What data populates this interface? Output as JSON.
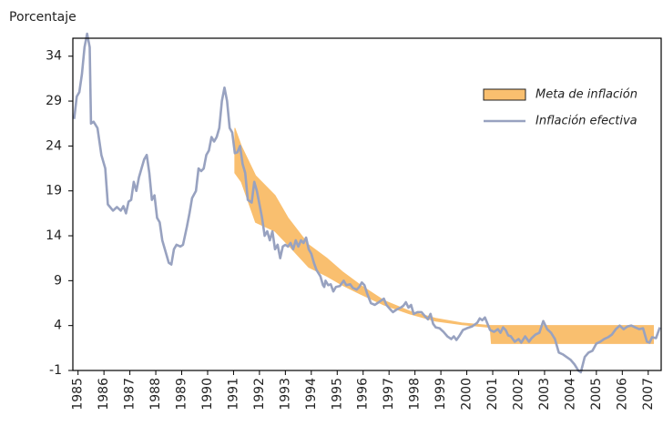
{
  "chart_data": {
    "type": "line",
    "y_label": "Porcentaje",
    "xlim": [
      1984.8,
      2007.5
    ],
    "xticks": [
      1985,
      1986,
      1987,
      1988,
      1989,
      1990,
      1991,
      1992,
      1993,
      1994,
      1995,
      1996,
      1997,
      1998,
      1999,
      2000,
      2001,
      2002,
      2003,
      2004,
      2005,
      2006,
      2007
    ],
    "ylim": [
      -1,
      36
    ],
    "yticks": [
      -1,
      4,
      9,
      14,
      19,
      24,
      29,
      34
    ],
    "grid": false,
    "legend": "upper right",
    "series": [
      {
        "name": "Meta de inflación",
        "color": "#f9bf6f",
        "kind": "band",
        "x": [
          1991.05,
          1991.3,
          1991.85,
          1992.6,
          1993.1,
          1993.9,
          1994.6,
          1995.2,
          1995.9,
          1996.8,
          1997.8,
          1998.8,
          1999.8,
          2000.9,
          2000.95,
          2007.2
        ],
        "upper": [
          26,
          24,
          20.7,
          18.5,
          16,
          13,
          11.5,
          10,
          8.5,
          6.8,
          5.6,
          4.8,
          4.3,
          4,
          4,
          4
        ],
        "lower": [
          21,
          20,
          15.5,
          14.5,
          13,
          10.5,
          9.5,
          8.5,
          7.5,
          6.3,
          5.3,
          4.5,
          4.1,
          3.8,
          2,
          2
        ]
      },
      {
        "name": "Inflación efectiva",
        "color": "#98a2c0",
        "kind": "line",
        "x": [
          1984.85,
          1984.95,
          1985.05,
          1985.15,
          1985.25,
          1985.35,
          1985.45,
          1985.5,
          1985.6,
          1985.75,
          1985.9,
          1986.05,
          1986.15,
          1986.35,
          1986.5,
          1986.65,
          1986.75,
          1986.85,
          1986.95,
          1987.05,
          1987.15,
          1987.25,
          1987.35,
          1987.45,
          1987.55,
          1987.65,
          1987.75,
          1987.85,
          1987.95,
          1988.05,
          1988.15,
          1988.25,
          1988.4,
          1988.5,
          1988.6,
          1988.7,
          1988.8,
          1988.95,
          1989.05,
          1989.2,
          1989.3,
          1989.4,
          1989.55,
          1989.65,
          1989.75,
          1989.85,
          1989.95,
          1990.05,
          1990.15,
          1990.25,
          1990.35,
          1990.45,
          1990.55,
          1990.65,
          1990.75,
          1990.85,
          1990.95,
          1991.05,
          1991.15,
          1991.25,
          1991.35,
          1991.45,
          1991.55,
          1991.7,
          1991.8,
          1991.9,
          1992.0,
          1992.1,
          1992.2,
          1992.3,
          1992.4,
          1992.5,
          1992.6,
          1992.7,
          1992.8,
          1992.9,
          1993.0,
          1993.1,
          1993.2,
          1993.3,
          1993.4,
          1993.5,
          1993.6,
          1993.7,
          1993.8,
          1993.9,
          1994.0,
          1994.1,
          1994.2,
          1994.35,
          1994.45,
          1994.5,
          1994.55,
          1994.65,
          1994.75,
          1994.85,
          1994.95,
          1995.1,
          1995.25,
          1995.35,
          1995.5,
          1995.6,
          1995.75,
          1995.85,
          1995.95,
          1996.05,
          1996.15,
          1996.3,
          1996.45,
          1996.55,
          1996.7,
          1996.8,
          1996.9,
          1997.05,
          1997.15,
          1997.3,
          1997.45,
          1997.55,
          1997.65,
          1997.75,
          1997.85,
          1997.95,
          1998.1,
          1998.25,
          1998.4,
          1998.5,
          1998.6,
          1998.7,
          1998.8,
          1998.95,
          1999.1,
          1999.25,
          1999.4,
          1999.5,
          1999.6,
          1999.7,
          1999.85,
          2000.0,
          2000.2,
          2000.4,
          2000.5,
          2000.6,
          2000.7,
          2000.8,
          2000.9,
          2001.05,
          2001.2,
          2001.3,
          2001.4,
          2001.5,
          2001.6,
          2001.7,
          2001.85,
          2002.0,
          2002.1,
          2002.25,
          2002.4,
          2002.5,
          2002.65,
          2002.8,
          2002.95,
          2003.1,
          2003.25,
          2003.4,
          2003.55,
          2003.7,
          2003.85,
          2004.0,
          2004.15,
          2004.3,
          2004.4,
          2004.55,
          2004.7,
          2004.85,
          2005.0,
          2005.15,
          2005.3,
          2005.45,
          2005.6,
          2005.75,
          2005.9,
          2006.05,
          2006.2,
          2006.35,
          2006.5,
          2006.65,
          2006.8,
          2006.95,
          2007.05,
          2007.15,
          2007.3,
          2007.45
        ],
        "values": [
          27,
          29.5,
          30,
          32,
          35,
          36.5,
          35,
          26.5,
          26.7,
          26,
          23,
          21.5,
          17.5,
          16.8,
          17.2,
          16.8,
          17.3,
          16.5,
          17.8,
          18,
          20,
          19,
          20.5,
          21.5,
          22.5,
          23,
          21,
          18,
          18.5,
          16,
          15.5,
          13.5,
          12,
          11,
          10.8,
          12.5,
          13,
          12.8,
          13,
          15,
          16.5,
          18.2,
          19,
          21.5,
          21.2,
          21.5,
          23,
          23.5,
          25,
          24.5,
          25,
          26,
          29,
          30.5,
          29,
          26,
          25.5,
          23.2,
          23.3,
          24,
          22,
          21,
          18,
          17.7,
          20,
          19,
          17.5,
          16,
          14,
          14.5,
          13.5,
          14.5,
          12.5,
          13,
          11.5,
          12.8,
          13,
          12.8,
          13.2,
          12.5,
          13.5,
          12.8,
          13.5,
          13.2,
          13.8,
          12.5,
          12,
          11,
          10.2,
          9.5,
          8.5,
          8.3,
          9,
          8.5,
          8.6,
          7.8,
          8.3,
          8.4,
          9,
          8.5,
          8.6,
          8.2,
          8,
          8.3,
          8.8,
          8.5,
          7.6,
          6.5,
          6.3,
          6.5,
          6.8,
          7,
          6.3,
          5.8,
          5.5,
          5.8,
          6,
          6.2,
          6.6,
          6,
          6.3,
          5.3,
          5.5,
          5.5,
          5,
          4.7,
          5.3,
          4.2,
          3.8,
          3.7,
          3.3,
          2.8,
          2.5,
          2.8,
          2.4,
          2.8,
          3.5,
          3.7,
          3.9,
          4.3,
          4.8,
          4.6,
          4.9,
          4.2,
          3.5,
          3.3,
          3.6,
          3.2,
          3.8,
          3.5,
          2.9,
          2.8,
          2.2,
          2.5,
          2.1,
          2.8,
          2.2,
          2.6,
          3,
          3.2,
          4.5,
          3.6,
          3.2,
          2.5,
          1,
          0.8,
          0.5,
          0.2,
          -0.3,
          -1,
          -1.2,
          0.5,
          1,
          1.2,
          2,
          2.2,
          2.5,
          2.7,
          3,
          3.6,
          4,
          3.6,
          3.9,
          4,
          3.8,
          3.6,
          3.7,
          2.2,
          2.1,
          2.7,
          2.6,
          3.8
        ]
      }
    ]
  }
}
